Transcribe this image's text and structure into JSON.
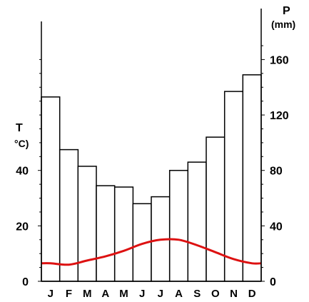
{
  "chart_data": {
    "type": "bar",
    "categories": [
      "J",
      "F",
      "M",
      "A",
      "M",
      "J",
      "J",
      "A",
      "S",
      "O",
      "N",
      "D"
    ],
    "series": [
      {
        "name": "P",
        "unit": "(mm)",
        "axis": "right",
        "kind": "bar",
        "values": [
          133,
          95,
          83,
          69,
          68,
          56,
          61,
          80,
          86,
          104,
          137,
          149
        ]
      },
      {
        "name": "T",
        "unit": "°C)",
        "axis": "left",
        "kind": "line",
        "color": "#dd1111",
        "values": [
          6.5,
          6.0,
          7.5,
          9.0,
          11.0,
          13.5,
          15.0,
          15.0,
          13.0,
          10.5,
          8.0,
          6.5
        ]
      }
    ],
    "left_axis": {
      "label_line1": "T",
      "label_line2": "°C)",
      "ylim": [
        0,
        85
      ],
      "ticks": [
        0,
        20,
        40
      ]
    },
    "right_axis": {
      "label_line1": "P",
      "label_line2": "(mm)",
      "ylim": [
        0,
        170
      ],
      "ticks": [
        0,
        40,
        80,
        120,
        160
      ]
    },
    "bar_color": "#ffffff",
    "bar_stroke": "#000000"
  }
}
